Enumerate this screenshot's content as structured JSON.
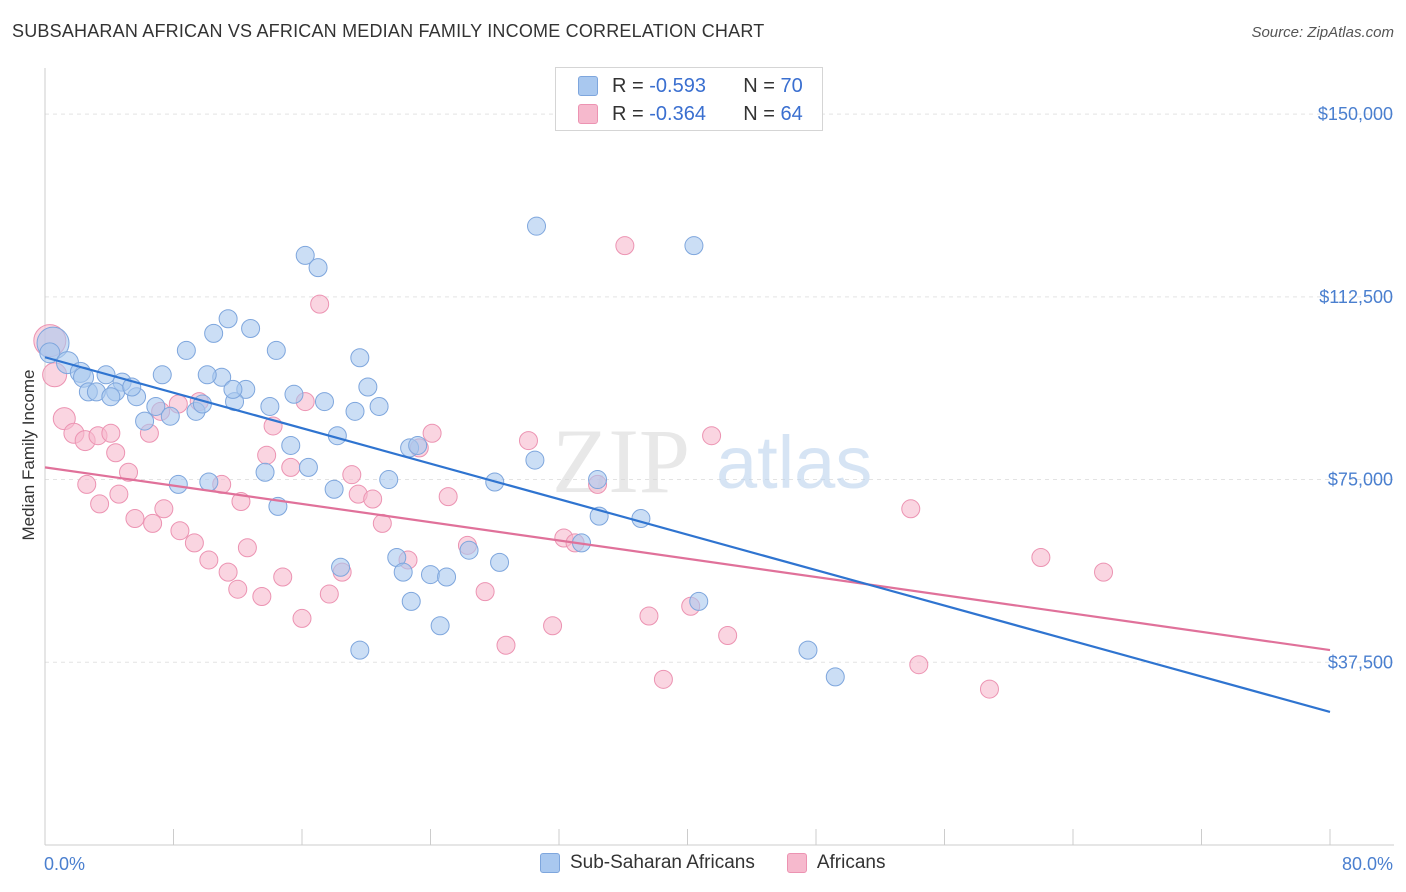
{
  "title": "SUBSAHARAN AFRICAN VS AFRICAN MEDIAN FAMILY INCOME CORRELATION CHART",
  "source": "Source: ZipAtlas.com",
  "watermark": {
    "zip": "ZIP",
    "atlas": "atlas"
  },
  "legend": {
    "rows": [
      {
        "r_label": "R =",
        "r_value": "-0.593",
        "n_label": "N =",
        "n_value": "70"
      },
      {
        "r_label": "R =",
        "r_value": "-0.364",
        "n_label": "N =",
        "n_value": "64"
      }
    ]
  },
  "bottom_legend": [
    "Sub-Saharan Africans",
    "Africans"
  ],
  "colors": {
    "blue_fill": "#a9c8ef",
    "blue_stroke": "#7ea6dd",
    "blue_line": "#2f74d0",
    "pink_fill": "#f6b9cd",
    "pink_stroke": "#ec93b2",
    "pink_line": "#e0719a",
    "tick_text": "#4a7fcf",
    "grid": "#e3e3e3"
  },
  "chart_data": {
    "type": "scatter",
    "xlabel": "",
    "ylabel": "Median Family Income",
    "x_unit": "%",
    "xlim": [
      0,
      80
    ],
    "ylim": [
      0,
      157000
    ],
    "x_tick_labels": [
      "0.0%",
      "80.0%"
    ],
    "y_ticks": [
      37500,
      75000,
      112500,
      150000
    ],
    "y_tick_labels": [
      "$37,500",
      "$75,000",
      "$112,500",
      "$150,000"
    ],
    "grid": "horizontal dashed",
    "series": [
      {
        "name": "Sub-Saharan Africans",
        "color": "#a9c8ef",
        "R": -0.593,
        "N": 70,
        "trend": [
          [
            0,
            100100
          ],
          [
            80,
            27300
          ]
        ],
        "points": [
          [
            0.5,
            103000,
            16
          ],
          [
            0.3,
            101000,
            10
          ],
          [
            1.4,
            99000,
            11
          ],
          [
            2.2,
            97000,
            10
          ],
          [
            2.4,
            96000,
            10
          ],
          [
            3.8,
            96500,
            9
          ],
          [
            4.8,
            95000,
            9
          ],
          [
            2.7,
            93000,
            9
          ],
          [
            3.2,
            93000,
            9
          ],
          [
            4.4,
            93000,
            9
          ],
          [
            5.7,
            92000,
            9
          ],
          [
            5.4,
            94000,
            9
          ],
          [
            7.3,
            96500,
            9
          ],
          [
            6.9,
            90000,
            9
          ],
          [
            6.2,
            87000,
            9
          ],
          [
            7.8,
            88000,
            9
          ],
          [
            9.4,
            89000,
            9
          ],
          [
            8.8,
            101500,
            9
          ],
          [
            10.5,
            105000,
            9
          ],
          [
            11.4,
            108000,
            9
          ],
          [
            12.8,
            106000,
            9
          ],
          [
            11.0,
            96000,
            9
          ],
          [
            10.1,
            96500,
            9
          ],
          [
            12.5,
            93500,
            9
          ],
          [
            14.0,
            90000,
            9
          ],
          [
            11.8,
            91000,
            9
          ],
          [
            14.4,
            101500,
            9
          ],
          [
            16.2,
            121000,
            9
          ],
          [
            17.0,
            118500,
            9
          ],
          [
            15.5,
            92500,
            9
          ],
          [
            17.4,
            91000,
            9
          ],
          [
            18.2,
            84000,
            9
          ],
          [
            19.6,
            100000,
            9
          ],
          [
            20.1,
            94000,
            9
          ],
          [
            19.3,
            89000,
            9
          ],
          [
            20.8,
            90000,
            9
          ],
          [
            15.3,
            82000,
            9
          ],
          [
            16.4,
            77500,
            9
          ],
          [
            18.0,
            73000,
            9
          ],
          [
            21.4,
            75000,
            9
          ],
          [
            22.7,
            81500,
            9
          ],
          [
            23.2,
            82000,
            9
          ],
          [
            10.2,
            74500,
            9
          ],
          [
            8.3,
            74000,
            9
          ],
          [
            14.5,
            69500,
            9
          ],
          [
            21.9,
            59000,
            9
          ],
          [
            24.0,
            55500,
            9
          ],
          [
            28.3,
            58000,
            9
          ],
          [
            30.5,
            79000,
            9
          ],
          [
            30.6,
            127000,
            9
          ],
          [
            34.4,
            75000,
            9
          ],
          [
            37.1,
            67000,
            9
          ],
          [
            40.4,
            123000,
            9
          ],
          [
            40.7,
            50000,
            9
          ],
          [
            47.5,
            40000,
            9
          ],
          [
            49.2,
            34500,
            9
          ],
          [
            28.0,
            74500,
            9
          ],
          [
            25.0,
            55000,
            9
          ],
          [
            22.3,
            56000,
            9
          ],
          [
            34.5,
            67500,
            9
          ],
          [
            26.4,
            60500,
            9
          ],
          [
            33.4,
            62000,
            9
          ],
          [
            24.6,
            45000,
            9
          ],
          [
            22.8,
            50000,
            9
          ],
          [
            18.4,
            57000,
            9
          ],
          [
            19.6,
            40000,
            9
          ],
          [
            13.7,
            76500,
            9
          ],
          [
            11.7,
            93500,
            9
          ],
          [
            9.8,
            90500,
            9
          ],
          [
            4.1,
            92000,
            9
          ]
        ]
      },
      {
        "name": "Africans",
        "color": "#f6b9cd",
        "R": -0.364,
        "N": 64,
        "trend": [
          [
            0,
            77500
          ],
          [
            80,
            40000
          ]
        ],
        "points": [
          [
            0.3,
            103500,
            16
          ],
          [
            0.6,
            96500,
            12
          ],
          [
            1.2,
            87500,
            11
          ],
          [
            1.8,
            84500,
            10
          ],
          [
            2.5,
            83000,
            10
          ],
          [
            3.3,
            84000,
            9
          ],
          [
            4.1,
            84500,
            9
          ],
          [
            4.4,
            80500,
            9
          ],
          [
            5.2,
            76500,
            9
          ],
          [
            6.5,
            84500,
            9
          ],
          [
            7.2,
            89000,
            9
          ],
          [
            8.3,
            90500,
            9
          ],
          [
            9.6,
            91000,
            9
          ],
          [
            11.0,
            74000,
            9
          ],
          [
            12.2,
            70500,
            9
          ],
          [
            13.8,
            80000,
            9
          ],
          [
            14.2,
            86000,
            9
          ],
          [
            15.3,
            77500,
            9
          ],
          [
            16.2,
            91000,
            9
          ],
          [
            17.1,
            111000,
            9
          ],
          [
            19.1,
            76000,
            9
          ],
          [
            19.5,
            72000,
            9
          ],
          [
            20.4,
            71000,
            9
          ],
          [
            21.0,
            66000,
            9
          ],
          [
            22.6,
            58500,
            9
          ],
          [
            23.3,
            81500,
            9
          ],
          [
            24.1,
            84500,
            9
          ],
          [
            25.1,
            71500,
            9
          ],
          [
            26.3,
            61500,
            9
          ],
          [
            27.4,
            52000,
            9
          ],
          [
            28.7,
            41000,
            9
          ],
          [
            30.1,
            83000,
            9
          ],
          [
            31.6,
            45000,
            9
          ],
          [
            32.3,
            63000,
            9
          ],
          [
            33.0,
            62000,
            9
          ],
          [
            34.4,
            74000,
            9
          ],
          [
            36.1,
            123000,
            9
          ],
          [
            37.6,
            47000,
            9
          ],
          [
            38.5,
            34000,
            9
          ],
          [
            40.2,
            49000,
            9
          ],
          [
            41.5,
            84000,
            9
          ],
          [
            42.5,
            43000,
            9
          ],
          [
            53.9,
            69000,
            9
          ],
          [
            54.4,
            37000,
            9
          ],
          [
            58.8,
            32000,
            9
          ],
          [
            62.0,
            59000,
            9
          ],
          [
            65.9,
            56000,
            9
          ],
          [
            2.6,
            74000,
            9
          ],
          [
            3.4,
            70000,
            9
          ],
          [
            4.6,
            72000,
            9
          ],
          [
            5.6,
            67000,
            9
          ],
          [
            6.7,
            66000,
            9
          ],
          [
            7.4,
            69000,
            9
          ],
          [
            8.4,
            64500,
            9
          ],
          [
            9.3,
            62000,
            9
          ],
          [
            10.2,
            58500,
            9
          ],
          [
            11.4,
            56000,
            9
          ],
          [
            12.0,
            52500,
            9
          ],
          [
            12.6,
            61000,
            9
          ],
          [
            13.5,
            51000,
            9
          ],
          [
            14.8,
            55000,
            9
          ],
          [
            16.0,
            46500,
            9
          ],
          [
            17.7,
            51500,
            9
          ],
          [
            18.5,
            56000,
            9
          ]
        ]
      }
    ]
  }
}
